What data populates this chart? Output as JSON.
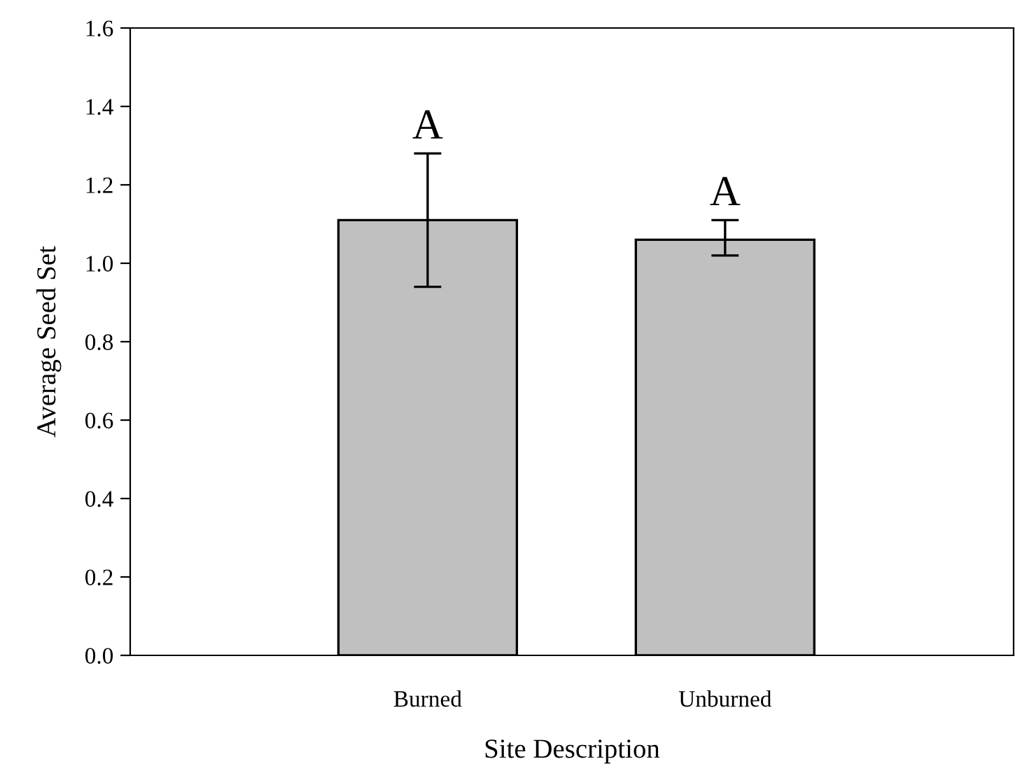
{
  "chart_data": {
    "type": "bar",
    "xlabel": "Site Description",
    "ylabel": "Average Seed Set",
    "categories": [
      "Burned",
      "Unburned"
    ],
    "values": [
      1.11,
      1.06
    ],
    "errors": [
      [
        0.94,
        1.28
      ],
      [
        1.02,
        1.11
      ]
    ],
    "color": "#c0c0c0",
    "ylim": [
      0,
      1.6
    ],
    "yticks": [
      {
        "value": 0,
        "label": "0.0"
      },
      {
        "value": 0.2,
        "label": "0.2"
      },
      {
        "value": 0.4,
        "label": "0.4"
      },
      {
        "value": 0.6,
        "label": "0.6"
      },
      {
        "value": 0.8,
        "label": "0.8"
      },
      {
        "value": 1.0,
        "label": "1.0"
      },
      {
        "value": 1.2,
        "label": "1.2"
      },
      {
        "value": 1.4,
        "label": "1.4"
      },
      {
        "value": 1.6,
        "label": "1.6"
      }
    ],
    "annotations": [
      "A",
      "A"
    ],
    "grid": false
  }
}
